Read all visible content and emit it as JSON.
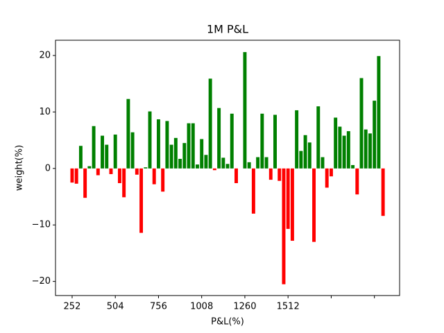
{
  "chart_data": {
    "type": "bar",
    "title": "1M P&L",
    "x_label": "P&L(%)",
    "y_label": "weight(%)",
    "x": [
      252.0,
      277.2,
      302.4,
      327.6,
      352.8,
      378.0,
      403.2,
      428.4,
      453.6,
      478.8,
      504.0,
      529.2,
      554.4,
      579.6,
      604.8,
      630.0,
      655.2,
      680.4,
      705.6,
      730.8,
      756.0,
      781.2,
      806.4,
      831.6,
      856.8,
      882.0,
      907.2,
      932.4,
      957.6,
      982.8,
      1008.0,
      1033.2,
      1058.4,
      1083.6,
      1108.8,
      1134.0,
      1159.2,
      1184.4,
      1209.6,
      1234.8,
      1260.0,
      1285.2,
      1310.4,
      1335.6,
      1360.8,
      1386.0,
      1411.2,
      1436.4,
      1461.6,
      1486.8,
      1512.0,
      1537.2,
      1562.4,
      1587.6,
      1612.8,
      1638.0,
      1663.2,
      1688.4,
      1713.6,
      1738.8,
      1764.0,
      1789.2,
      1814.4,
      1839.6,
      1864.8,
      1890.0,
      1915.2,
      1940.4,
      1965.6,
      1990.8,
      2016.0,
      2041.2,
      2066.4
    ],
    "values": [
      -2.5,
      -2.7,
      4.0,
      -5.2,
      0.4,
      7.5,
      -1.2,
      5.8,
      4.2,
      -1.0,
      6.0,
      -2.6,
      -5.1,
      12.3,
      6.4,
      -1.1,
      -11.4,
      0.2,
      10.1,
      -2.8,
      8.7,
      -4.1,
      8.4,
      4.2,
      5.4,
      1.7,
      4.5,
      8.0,
      8.0,
      0.7,
      5.2,
      2.4,
      15.9,
      -0.3,
      10.7,
      1.9,
      0.8,
      9.7,
      -2.6,
      0,
      20.6,
      1.1,
      -8.0,
      2.0,
      9.7,
      2.0,
      -2.0,
      9.5,
      -2.2,
      -20.5,
      -10.7,
      -12.8,
      10.3,
      3.1,
      5.9,
      4.6,
      -13.0,
      11.0,
      2.0,
      -3.4,
      -1.4,
      9.0,
      7.4,
      5.8,
      6.6,
      0.6,
      -4.6,
      16.0,
      6.9,
      6.2,
      12.0,
      19.9,
      -8.4
    ],
    "color_positive": "green",
    "color_negative": "red",
    "xlim": [
      155,
      2163
    ],
    "ylim": [
      -22.5,
      22.7
    ],
    "xticks": [
      252,
      504,
      756,
      1008,
      1260,
      1512,
      {
        "value": 1764,
        "label": null
      },
      {
        "value": 2016,
        "label": null
      }
    ],
    "yticks": [
      {
        "value": -20,
        "label": "−20"
      },
      {
        "value": -10,
        "label": "−10"
      },
      0,
      10,
      20
    ]
  }
}
